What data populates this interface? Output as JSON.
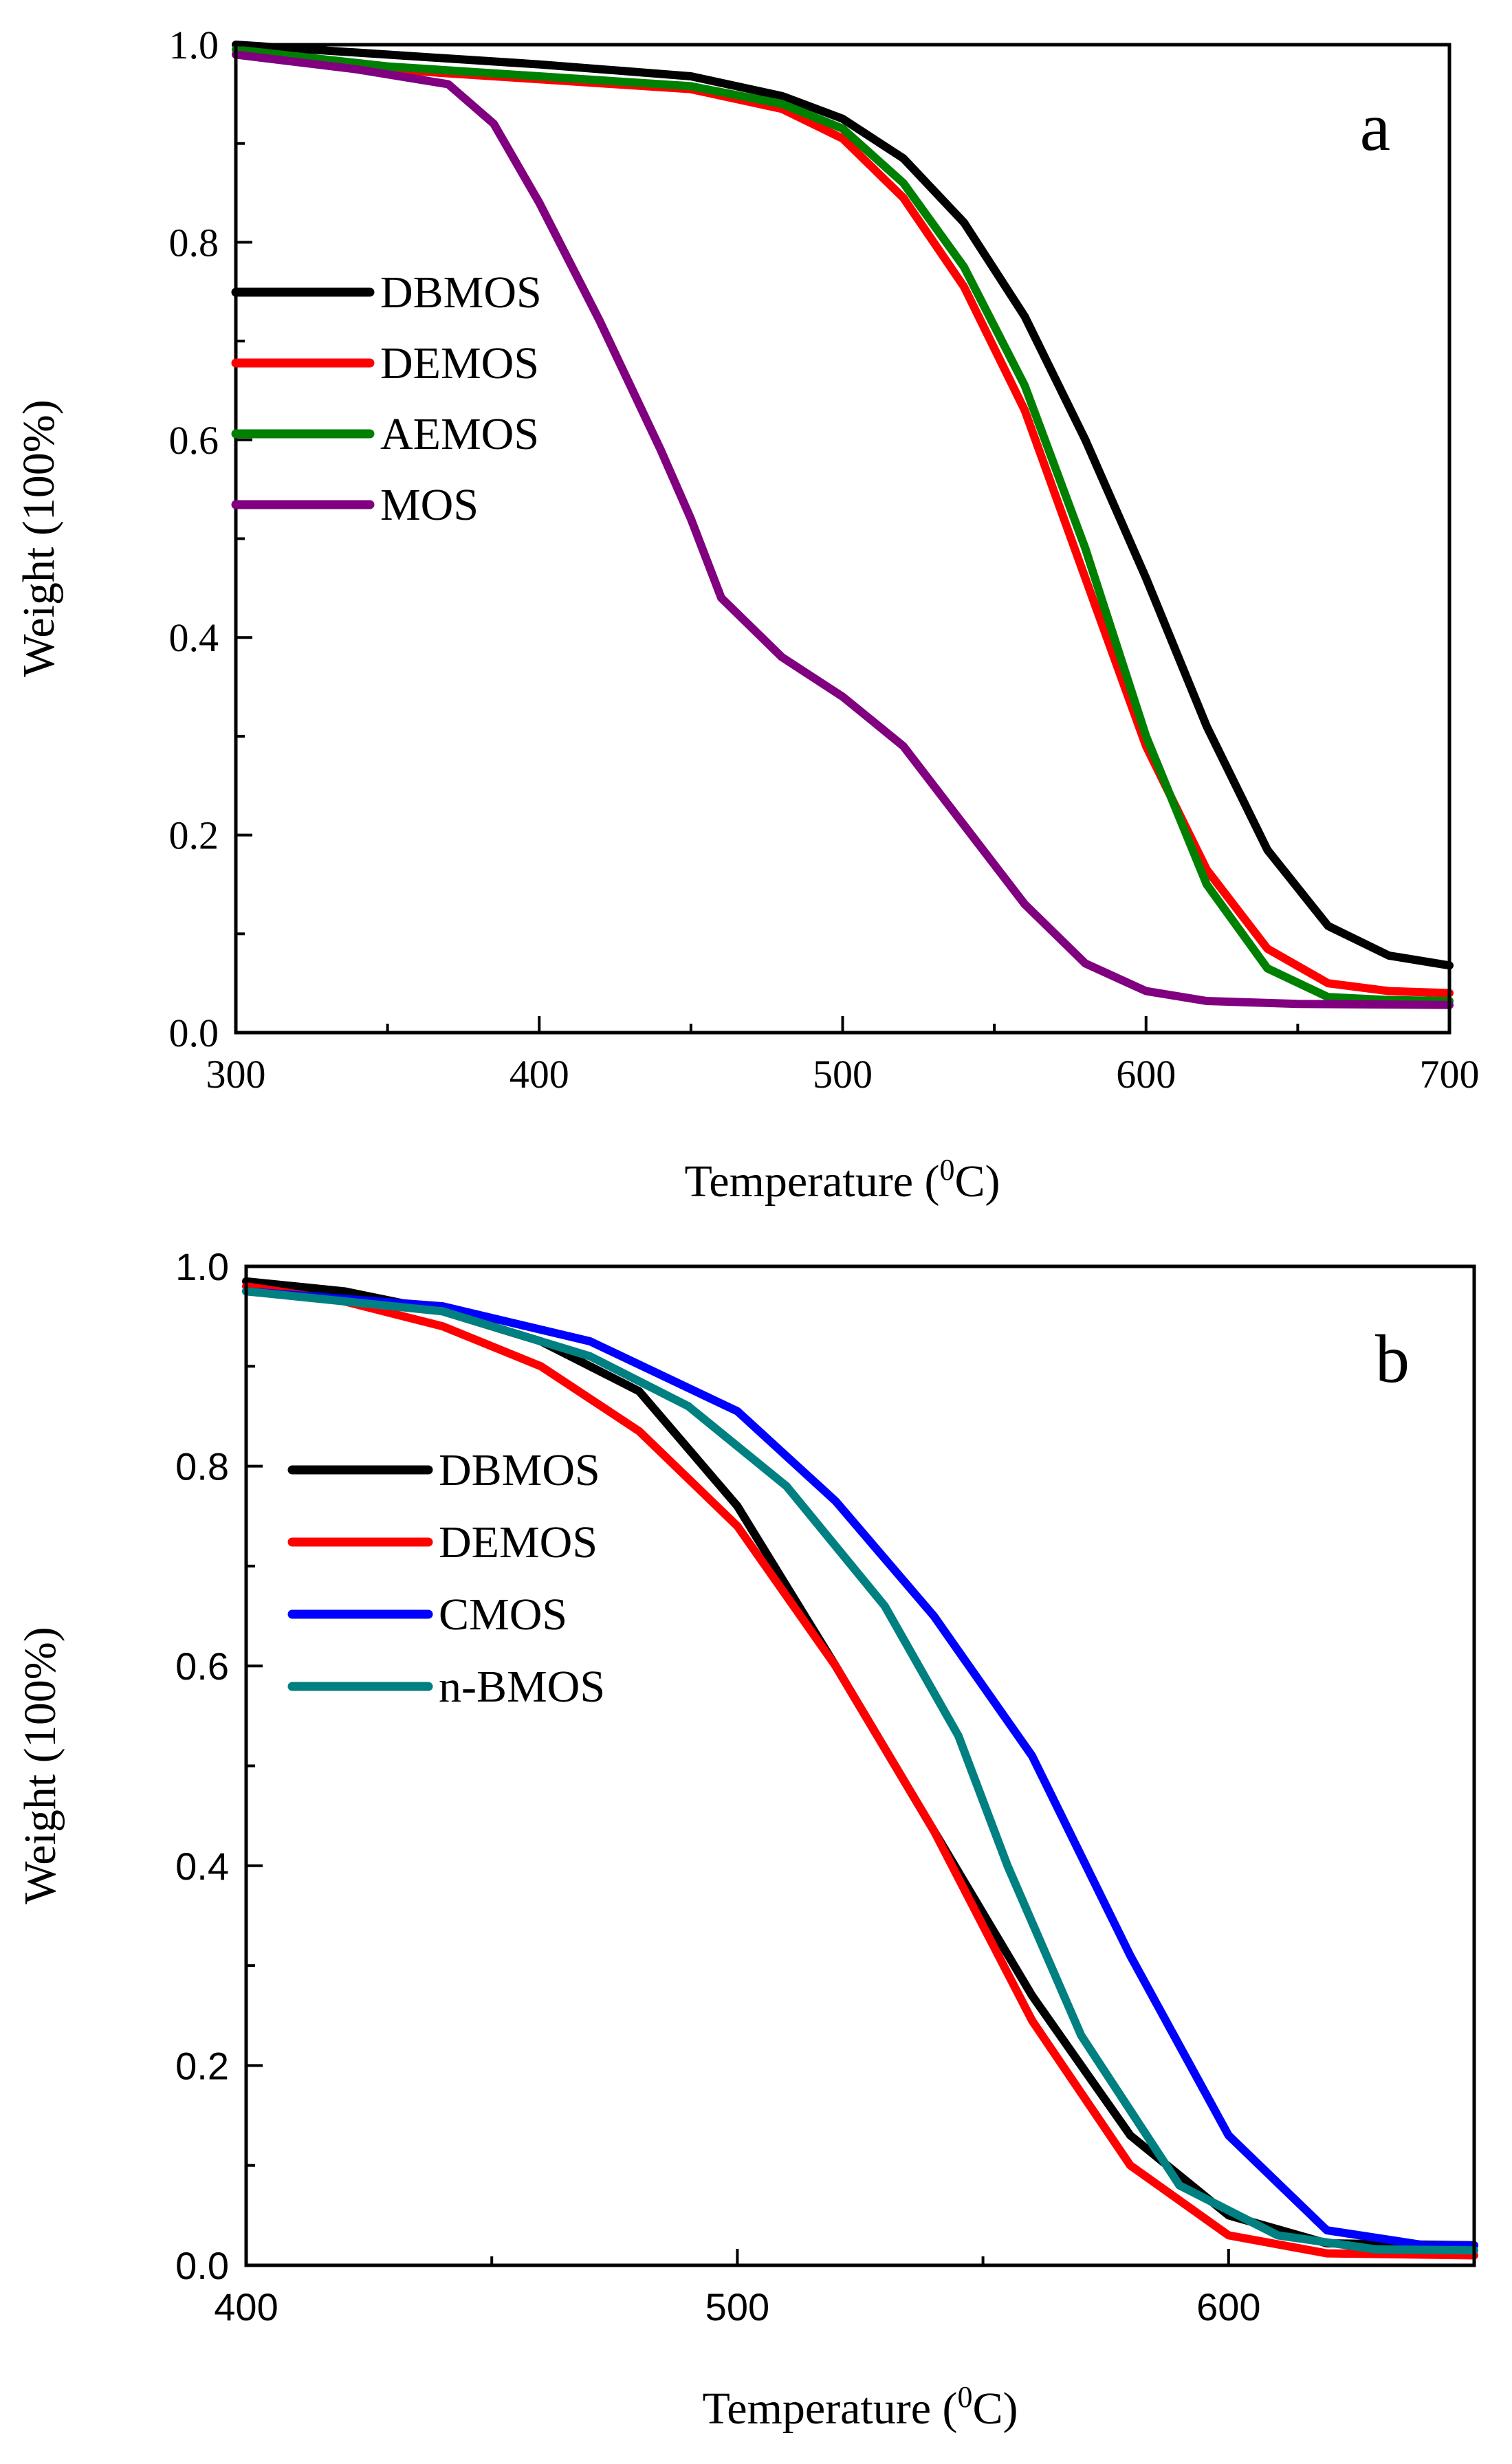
{
  "chart_data": [
    {
      "type": "line",
      "panel_label": "a",
      "xlabel_main": "Temperature (",
      "xlabel_sup": "0",
      "xlabel_end": "C)",
      "ylabel": "Weight (100%)",
      "xlim": [
        300,
        700
      ],
      "ylim": [
        0.0,
        1.0
      ],
      "xticks": [
        "300",
        "400",
        "500",
        "600",
        "700"
      ],
      "yticks": [
        "0.0",
        "0.2",
        "0.4",
        "0.6",
        "0.8",
        "1.0"
      ],
      "legend_position": "center-left",
      "series": [
        {
          "name": "DBMOS",
          "color": "#000000",
          "points": [
            [
              300,
              1.0
            ],
            [
              350,
              0.99
            ],
            [
              400,
              0.98
            ],
            [
              450,
              0.968
            ],
            [
              480,
              0.948
            ],
            [
              500,
              0.925
            ],
            [
              520,
              0.885
            ],
            [
              540,
              0.82
            ],
            [
              560,
              0.725
            ],
            [
              580,
              0.6
            ],
            [
              600,
              0.46
            ],
            [
              620,
              0.31
            ],
            [
              640,
              0.185
            ],
            [
              660,
              0.108
            ],
            [
              680,
              0.078
            ],
            [
              700,
              0.068
            ]
          ]
        },
        {
          "name": "DEMOS",
          "color": "#ff0000",
          "points": [
            [
              300,
              0.995
            ],
            [
              350,
              0.975
            ],
            [
              400,
              0.965
            ],
            [
              450,
              0.955
            ],
            [
              480,
              0.935
            ],
            [
              500,
              0.905
            ],
            [
              520,
              0.845
            ],
            [
              540,
              0.755
            ],
            [
              560,
              0.63
            ],
            [
              580,
              0.46
            ],
            [
              600,
              0.29
            ],
            [
              620,
              0.165
            ],
            [
              640,
              0.085
            ],
            [
              660,
              0.05
            ],
            [
              680,
              0.042
            ],
            [
              700,
              0.04
            ]
          ]
        },
        {
          "name": "AEMOS",
          "color": "#008000",
          "points": [
            [
              300,
              0.995
            ],
            [
              350,
              0.978
            ],
            [
              400,
              0.968
            ],
            [
              450,
              0.958
            ],
            [
              480,
              0.94
            ],
            [
              500,
              0.915
            ],
            [
              520,
              0.86
            ],
            [
              540,
              0.775
            ],
            [
              560,
              0.655
            ],
            [
              580,
              0.49
            ],
            [
              600,
              0.3
            ],
            [
              620,
              0.15
            ],
            [
              640,
              0.065
            ],
            [
              660,
              0.036
            ],
            [
              680,
              0.033
            ],
            [
              700,
              0.032
            ]
          ]
        },
        {
          "name": "MOS",
          "color": "#800080",
          "points": [
            [
              300,
              0.99
            ],
            [
              340,
              0.975
            ],
            [
              370,
              0.96
            ],
            [
              385,
              0.92
            ],
            [
              400,
              0.84
            ],
            [
              420,
              0.72
            ],
            [
              440,
              0.59
            ],
            [
              450,
              0.52
            ],
            [
              460,
              0.44
            ],
            [
              480,
              0.38
            ],
            [
              500,
              0.34
            ],
            [
              520,
              0.29
            ],
            [
              540,
              0.21
            ],
            [
              560,
              0.13
            ],
            [
              580,
              0.07
            ],
            [
              600,
              0.042
            ],
            [
              620,
              0.032
            ],
            [
              650,
              0.029
            ],
            [
              700,
              0.028
            ]
          ]
        }
      ]
    },
    {
      "type": "line",
      "panel_label": "b",
      "xlabel_main": "Temperature (",
      "xlabel_sup": "0",
      "xlabel_end": "C)",
      "ylabel": "Weight (100%)",
      "xlim": [
        400,
        650
      ],
      "ylim": [
        0.0,
        1.0
      ],
      "xticks": [
        "400",
        "500",
        "600"
      ],
      "yticks": [
        "0.0",
        "0.2",
        "0.4",
        "0.6",
        "0.8",
        "1.0"
      ],
      "legend_position": "center-left",
      "series": [
        {
          "name": "DBMOS",
          "color": "#000000",
          "points": [
            [
              400,
              0.985
            ],
            [
              420,
              0.975
            ],
            [
              440,
              0.955
            ],
            [
              460,
              0.925
            ],
            [
              480,
              0.875
            ],
            [
              500,
              0.76
            ],
            [
              520,
              0.6
            ],
            [
              540,
              0.435
            ],
            [
              560,
              0.27
            ],
            [
              580,
              0.13
            ],
            [
              600,
              0.05
            ],
            [
              620,
              0.022
            ],
            [
              650,
              0.02
            ]
          ]
        },
        {
          "name": "DEMOS",
          "color": "#ff0000",
          "points": [
            [
              400,
              0.98
            ],
            [
              420,
              0.965
            ],
            [
              440,
              0.94
            ],
            [
              460,
              0.9
            ],
            [
              480,
              0.835
            ],
            [
              500,
              0.74
            ],
            [
              520,
              0.6
            ],
            [
              540,
              0.435
            ],
            [
              560,
              0.245
            ],
            [
              580,
              0.1
            ],
            [
              600,
              0.03
            ],
            [
              620,
              0.012
            ],
            [
              650,
              0.01
            ]
          ]
        },
        {
          "name": "CMOS",
          "color": "#0000ff",
          "points": [
            [
              400,
              0.975
            ],
            [
              440,
              0.96
            ],
            [
              470,
              0.925
            ],
            [
              500,
              0.855
            ],
            [
              520,
              0.765
            ],
            [
              540,
              0.65
            ],
            [
              560,
              0.51
            ],
            [
              580,
              0.31
            ],
            [
              600,
              0.13
            ],
            [
              620,
              0.035
            ],
            [
              640,
              0.02
            ],
            [
              650,
              0.02
            ]
          ]
        },
        {
          "name": "n-BMOS",
          "color": "#008080",
          "points": [
            [
              400,
              0.975
            ],
            [
              440,
              0.955
            ],
            [
              470,
              0.91
            ],
            [
              490,
              0.86
            ],
            [
              510,
              0.78
            ],
            [
              530,
              0.66
            ],
            [
              545,
              0.53
            ],
            [
              555,
              0.4
            ],
            [
              570,
              0.23
            ],
            [
              590,
              0.08
            ],
            [
              610,
              0.03
            ],
            [
              630,
              0.016
            ],
            [
              650,
              0.015
            ]
          ]
        }
      ]
    }
  ]
}
